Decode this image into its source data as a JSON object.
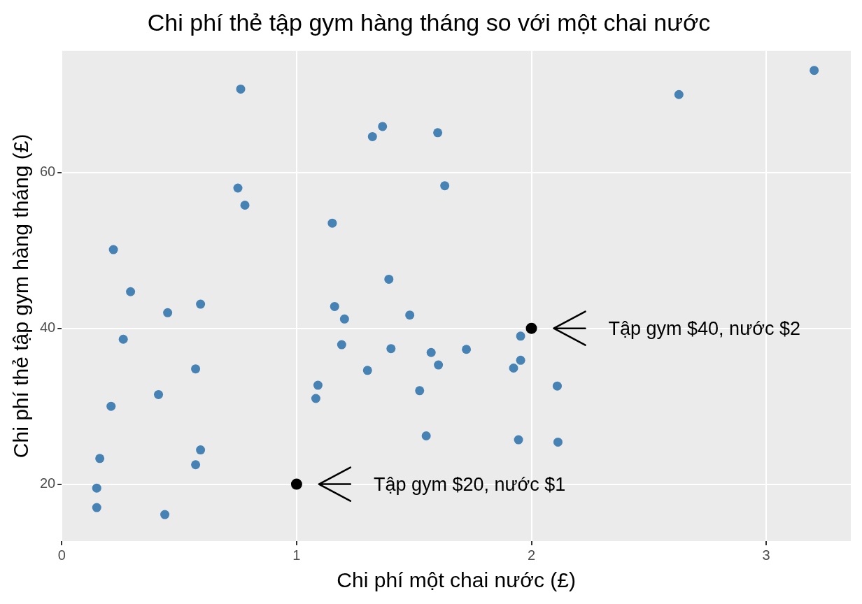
{
  "chart_data": {
    "type": "scatter",
    "title": "Chi phí thẻ tập gym hàng tháng so với một chai nước",
    "xlabel": "Chi phí một chai nước (£)",
    "ylabel": "Chi phí thẻ tập gym hàng tháng (£)",
    "xlim": [
      0,
      3.36
    ],
    "ylim": [
      12.7,
      75.6
    ],
    "xticks": [
      0,
      1,
      2,
      3
    ],
    "yticks": [
      20,
      40,
      60
    ],
    "grid": true,
    "legend": false,
    "marker": "circle",
    "series": [
      {
        "color": "#4682b4",
        "x": [
          0.762,
          2.628,
          3.204,
          1.323,
          1.366,
          1.601,
          1.631,
          0.75,
          0.78,
          1.152,
          0.22,
          0.293,
          1.393,
          0.451,
          0.591,
          1.162,
          1.204,
          1.482,
          0.262,
          1.192,
          1.402,
          1.573,
          1.723,
          1.954,
          1.604,
          1.954,
          1.924,
          0.57,
          1.302,
          1.091,
          1.524,
          2.11,
          0.412,
          1.082,
          0.21,
          1.552,
          1.945,
          2.113,
          0.591,
          0.57,
          0.162,
          0.149,
          0.149,
          0.439
        ],
        "values": [
          70.7,
          70.0,
          73.1,
          64.6,
          65.9,
          65.1,
          58.3,
          58.0,
          55.8,
          53.5,
          50.1,
          44.7,
          46.3,
          42.0,
          43.1,
          42.8,
          41.2,
          41.7,
          38.6,
          37.9,
          37.4,
          36.9,
          37.3,
          39.0,
          35.3,
          35.9,
          34.9,
          34.8,
          34.6,
          32.7,
          32.0,
          32.6,
          31.5,
          31.0,
          30.0,
          26.2,
          25.7,
          25.4,
          24.4,
          22.5,
          23.3,
          19.5,
          17.0,
          16.1
        ]
      },
      {
        "color": "#000000",
        "x": [
          1,
          2
        ],
        "values": [
          20,
          40
        ]
      }
    ],
    "annotations": [
      "Tập gym $20, nước $1",
      "Tập gym $40, nước $2"
    ]
  }
}
